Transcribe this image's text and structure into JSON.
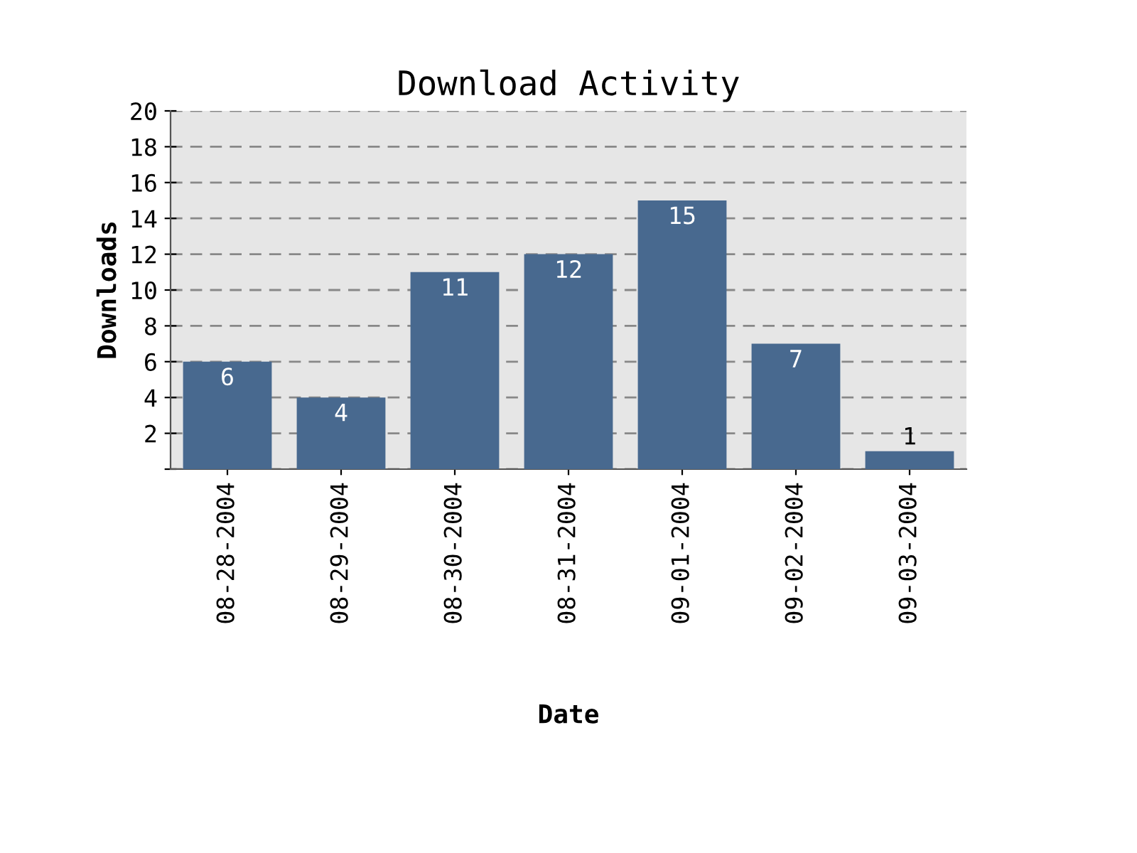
{
  "chart_data": {
    "type": "bar",
    "title": "Download Activity",
    "xlabel": "Date",
    "ylabel": "Downloads",
    "categories": [
      "08-28-2004",
      "08-29-2004",
      "08-30-2004",
      "08-31-2004",
      "09-01-2004",
      "09-02-2004",
      "09-03-2004"
    ],
    "values": [
      6,
      4,
      11,
      12,
      15,
      7,
      1
    ],
    "color": "#48698f",
    "ylim": [
      0,
      20
    ],
    "yticks": [
      {
        "value": 0,
        "label": null
      },
      2,
      4,
      6,
      8,
      10,
      12,
      14,
      16,
      18,
      20
    ],
    "grid": "y",
    "data_labels": true
  }
}
